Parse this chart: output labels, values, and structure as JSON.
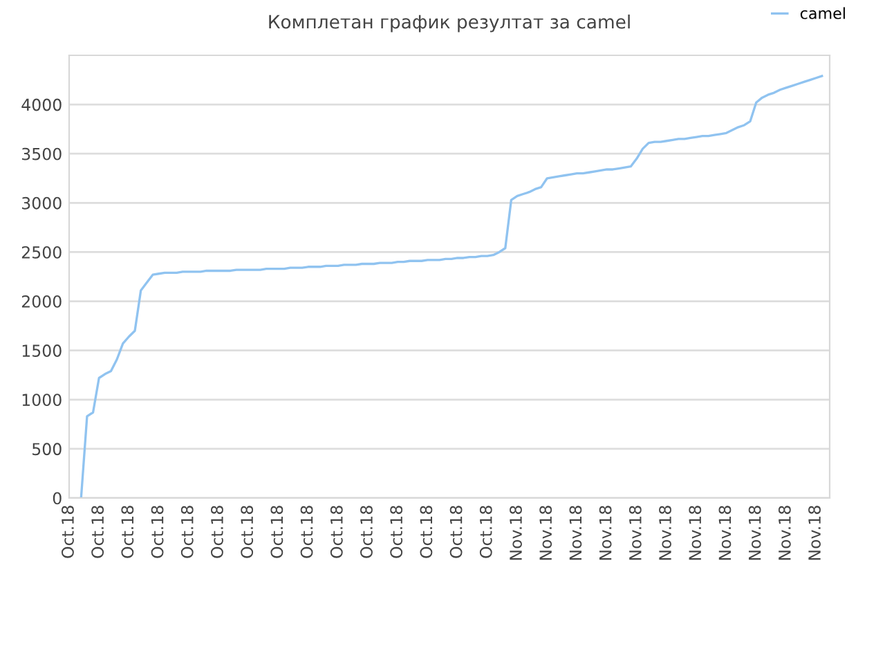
{
  "chart_data": {
    "type": "line",
    "title": "Комплетан график резултат за camel",
    "categories": [
      "Oct.18",
      null,
      null,
      null,
      null,
      "Oct.18",
      null,
      null,
      null,
      null,
      "Oct.18",
      null,
      null,
      null,
      null,
      "Oct.18",
      null,
      null,
      null,
      null,
      "Oct.18",
      null,
      null,
      null,
      null,
      "Oct.18",
      null,
      null,
      null,
      null,
      "Oct.18",
      null,
      null,
      null,
      null,
      "Oct.18",
      null,
      null,
      null,
      null,
      "Oct.18",
      null,
      null,
      null,
      null,
      "Oct.18",
      null,
      null,
      null,
      null,
      "Oct.18",
      null,
      null,
      null,
      null,
      "Oct.18",
      null,
      null,
      null,
      null,
      "Oct.18",
      null,
      null,
      null,
      null,
      "Oct.18",
      null,
      null,
      null,
      null,
      "Oct.18",
      null,
      null,
      null,
      null,
      "Nov.18",
      null,
      null,
      null,
      null,
      "Nov.18",
      null,
      null,
      null,
      null,
      "Nov.18",
      null,
      null,
      null,
      null,
      "Nov.18",
      null,
      null,
      null,
      null,
      "Nov.18",
      null,
      null,
      null,
      null,
      "Nov.18",
      null,
      null,
      null,
      null,
      "Nov.18",
      null,
      null,
      null,
      null,
      "Nov.18",
      null,
      null,
      null,
      null,
      "Nov.18",
      null,
      null,
      null,
      null,
      "Nov.18",
      null,
      null,
      null,
      null,
      "Nov.18",
      null,
      null
    ],
    "series": [
      {
        "name": "camel",
        "color": "#90c3f0",
        "values": [
          null,
          null,
          0,
          830,
          870,
          1220,
          1260,
          1290,
          1410,
          1570,
          1640,
          1700,
          2110,
          2190,
          2270,
          2280,
          2290,
          2290,
          2290,
          2300,
          2300,
          2300,
          2300,
          2310,
          2310,
          2310,
          2310,
          2310,
          2320,
          2320,
          2320,
          2320,
          2320,
          2330,
          2330,
          2330,
          2330,
          2340,
          2340,
          2340,
          2350,
          2350,
          2350,
          2360,
          2360,
          2360,
          2370,
          2370,
          2370,
          2380,
          2380,
          2380,
          2390,
          2390,
          2390,
          2400,
          2400,
          2410,
          2410,
          2410,
          2420,
          2420,
          2420,
          2430,
          2430,
          2440,
          2440,
          2450,
          2450,
          2460,
          2460,
          2470,
          2500,
          2540,
          3030,
          3070,
          3090,
          3110,
          3140,
          3160,
          3250,
          3260,
          3270,
          3280,
          3290,
          3300,
          3300,
          3310,
          3320,
          3330,
          3340,
          3340,
          3350,
          3360,
          3370,
          3450,
          3550,
          3610,
          3620,
          3620,
          3630,
          3640,
          3650,
          3650,
          3660,
          3670,
          3680,
          3680,
          3690,
          3700,
          3710,
          3740,
          3770,
          3790,
          3830,
          4020,
          4070,
          4100,
          4120,
          4150,
          4170,
          4190,
          4210,
          4230,
          4250,
          4270,
          4290,
          null
        ]
      }
    ],
    "ylim": [
      0,
      4500
    ],
    "yticks": [
      0,
      500,
      1000,
      1500,
      2000,
      2500,
      3000,
      3500,
      4000
    ],
    "grid": "y",
    "legend": "top right"
  }
}
